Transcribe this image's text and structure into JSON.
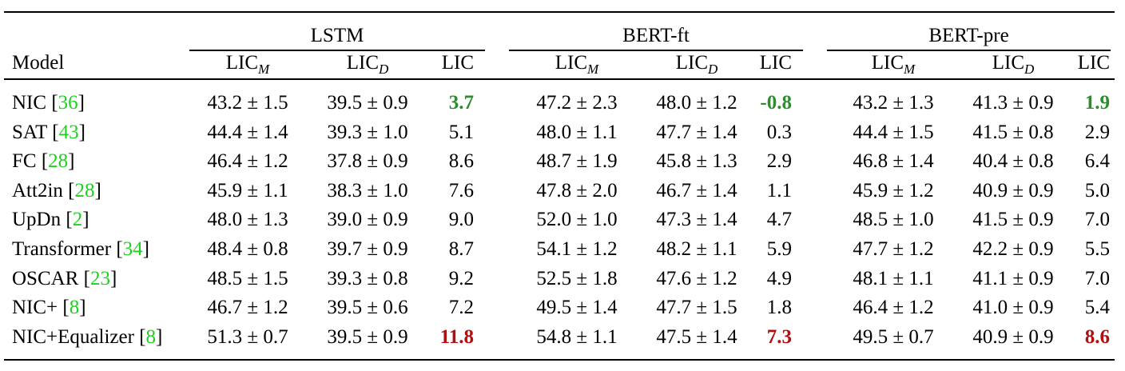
{
  "header": {
    "model_label": "Model",
    "groups": [
      "LSTM",
      "BERT-ft",
      "BERT-pre"
    ],
    "metric_base": "LIC",
    "metric_m_sub": "M",
    "metric_d_sub": "D",
    "metric_lic": "LIC"
  },
  "rows": [
    {
      "name": "NIC ",
      "ref": "36",
      "vals": [
        "43.2 ± 1.5",
        "39.5 ± 0.9",
        "3.7",
        "47.2 ± 2.3",
        "48.0 ± 1.2",
        "-0.8",
        "43.2 ± 1.3",
        "41.3 ± 0.9",
        "1.9"
      ]
    },
    {
      "name": "SAT ",
      "ref": "43",
      "vals": [
        "44.4 ± 1.4",
        "39.3 ± 1.0",
        "5.1",
        "48.0 ± 1.1",
        "47.7 ± 1.4",
        "0.3",
        "44.4 ± 1.5",
        "41.5 ± 0.8",
        "2.9"
      ]
    },
    {
      "name": "FC ",
      "ref": "28",
      "vals": [
        "46.4 ± 1.2",
        "37.8 ± 0.9",
        "8.6",
        "48.7 ± 1.9",
        "45.8 ± 1.3",
        "2.9",
        "46.8 ± 1.4",
        "40.4 ± 0.8",
        "6.4"
      ]
    },
    {
      "name": "Att2in ",
      "ref": "28",
      "vals": [
        "45.9 ± 1.1",
        "38.3 ± 1.0",
        "7.6",
        "47.8 ± 2.0",
        "46.7 ± 1.4",
        "1.1",
        "45.9 ± 1.2",
        "40.9 ± 0.9",
        "5.0"
      ]
    },
    {
      "name": "UpDn ",
      "ref": "2",
      "vals": [
        "48.0 ± 1.3",
        "39.0 ± 0.9",
        "9.0",
        "52.0 ± 1.0",
        "47.3 ± 1.4",
        "4.7",
        "48.5 ± 1.0",
        "41.5 ± 0.9",
        "7.0"
      ]
    },
    {
      "name": "Transformer ",
      "ref": "34",
      "vals": [
        "48.4 ± 0.8",
        "39.7 ± 0.9",
        "8.7",
        "54.1 ± 1.2",
        "48.2 ± 1.1",
        "5.9",
        "47.7 ± 1.2",
        "42.2 ± 0.9",
        "5.5"
      ]
    },
    {
      "name": "OSCAR ",
      "ref": "23",
      "vals": [
        "48.5 ± 1.5",
        "39.3 ± 0.8",
        "9.2",
        "52.5 ± 1.8",
        "47.6 ± 1.2",
        "4.9",
        "48.1 ± 1.1",
        "41.1 ± 0.9",
        "7.0"
      ]
    },
    {
      "name": "NIC+ ",
      "ref": "8",
      "vals": [
        "46.7 ± 1.2",
        "39.5 ± 0.6",
        "7.2",
        "49.5 ± 1.4",
        "47.7 ± 1.5",
        "1.8",
        "46.4 ± 1.2",
        "41.0 ± 0.9",
        "5.4"
      ]
    },
    {
      "name": "NIC+Equalizer ",
      "ref": "8",
      "vals": [
        "51.3 ± 0.7",
        "39.5 ± 0.9",
        "11.8",
        "54.8 ± 1.1",
        "47.5 ± 1.4",
        "7.3",
        "49.5 ± 0.7",
        "40.9 ± 0.9",
        "8.6"
      ]
    }
  ],
  "highlight_colors": {
    "lowest": "#2e8b2e",
    "highest": "#b01010",
    "citation": "#1fd11f"
  }
}
